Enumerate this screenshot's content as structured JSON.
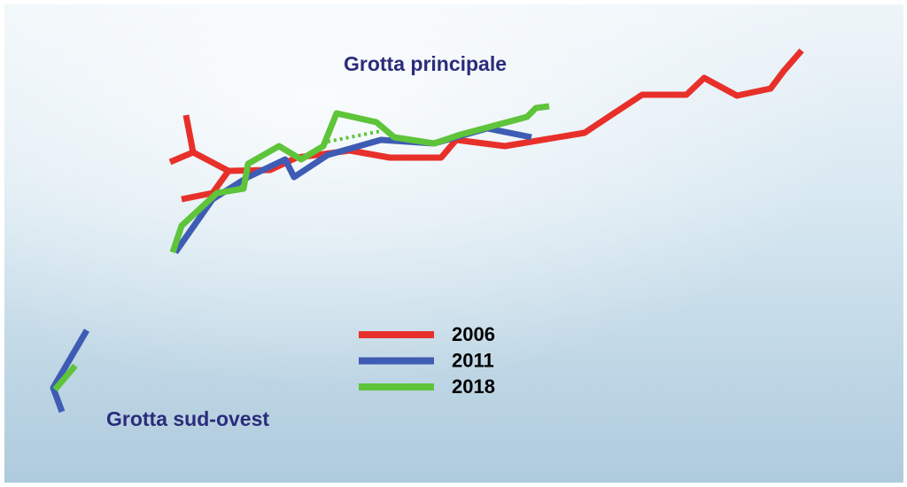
{
  "labels": {
    "main_cave": "Grotta principale",
    "southwest_cave": "Grotta sud-ovest"
  },
  "legend": [
    {
      "name": "2006",
      "color": "#e8302a"
    },
    {
      "name": "2011",
      "color": "#3f5cb4"
    },
    {
      "name": "2018",
      "color": "#5ec43a"
    }
  ]
}
